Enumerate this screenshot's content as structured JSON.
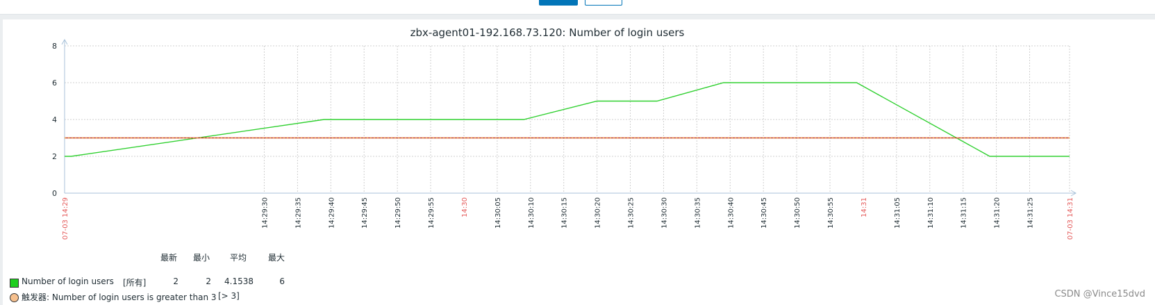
{
  "toolbar": {},
  "graph": {
    "title": "zbx-agent01-192.168.73.120: Number of login users"
  },
  "chart_data": {
    "type": "line",
    "title": "zbx-agent01-192.168.73.120: Number of login users",
    "xlabel": "",
    "ylabel": "",
    "ylim": [
      0,
      8
    ],
    "yticks": [
      "0",
      "2",
      "4",
      "6",
      "8"
    ],
    "x_tick_labels": [
      {
        "label": "07-03 14:29",
        "seconds": 0,
        "highlight": true
      },
      {
        "label": "14:29:30",
        "seconds": 30,
        "highlight": false
      },
      {
        "label": "14:29:35",
        "seconds": 35,
        "highlight": false
      },
      {
        "label": "14:29:40",
        "seconds": 40,
        "highlight": false
      },
      {
        "label": "14:29:45",
        "seconds": 45,
        "highlight": false
      },
      {
        "label": "14:29:50",
        "seconds": 50,
        "highlight": false
      },
      {
        "label": "14:29:55",
        "seconds": 55,
        "highlight": false
      },
      {
        "label": "14:30",
        "seconds": 60,
        "highlight": true
      },
      {
        "label": "14:30:05",
        "seconds": 65,
        "highlight": false
      },
      {
        "label": "14:30:10",
        "seconds": 70,
        "highlight": false
      },
      {
        "label": "14:30:15",
        "seconds": 75,
        "highlight": false
      },
      {
        "label": "14:30:20",
        "seconds": 80,
        "highlight": false
      },
      {
        "label": "14:30:25",
        "seconds": 85,
        "highlight": false
      },
      {
        "label": "14:30:30",
        "seconds": 90,
        "highlight": false
      },
      {
        "label": "14:30:35",
        "seconds": 95,
        "highlight": false
      },
      {
        "label": "14:30:40",
        "seconds": 100,
        "highlight": false
      },
      {
        "label": "14:30:45",
        "seconds": 105,
        "highlight": false
      },
      {
        "label": "14:30:50",
        "seconds": 110,
        "highlight": false
      },
      {
        "label": "14:30:55",
        "seconds": 115,
        "highlight": false
      },
      {
        "label": "14:31",
        "seconds": 120,
        "highlight": true
      },
      {
        "label": "14:31:05",
        "seconds": 125,
        "highlight": false
      },
      {
        "label": "14:31:10",
        "seconds": 130,
        "highlight": false
      },
      {
        "label": "14:31:15",
        "seconds": 135,
        "highlight": false
      },
      {
        "label": "14:31:20",
        "seconds": 140,
        "highlight": false
      },
      {
        "label": "14:31:25",
        "seconds": 145,
        "highlight": false
      },
      {
        "label": "07-03 14:31",
        "seconds": 151,
        "highlight": true
      }
    ],
    "series": [
      {
        "name": "Number of login users",
        "color": "#2fd02f",
        "points": [
          {
            "t": "14:29:00",
            "y": 2
          },
          {
            "t": "14:29:01",
            "y": 2
          },
          {
            "t": "14:29:39",
            "y": 4
          },
          {
            "t": "14:30:09",
            "y": 4
          },
          {
            "t": "14:30:20",
            "y": 5
          },
          {
            "t": "14:30:29",
            "y": 5
          },
          {
            "t": "14:30:39",
            "y": 6
          },
          {
            "t": "14:30:59",
            "y": 6
          },
          {
            "t": "14:31:19",
            "y": 2
          },
          {
            "t": "14:31:31",
            "y": 2
          }
        ]
      }
    ],
    "trigger": {
      "value": 3,
      "line_color": "#c0392b",
      "dot_color": "#f0a040"
    }
  },
  "legend": {
    "headers": {
      "latest": "最新",
      "min": "最小",
      "avg": "平均",
      "max": "最大"
    },
    "item": {
      "name": "Number of login users",
      "func": "[所有]",
      "latest": "2",
      "min": "2",
      "avg": "4.1538",
      "max": "6",
      "color": "#1ecf1e"
    },
    "trigger": {
      "label": "触发器: Number of login users is greater than 3",
      "condition": "[> 3]",
      "color": "#f6c08e"
    }
  },
  "watermark": "CSDN @Vince15dvd"
}
